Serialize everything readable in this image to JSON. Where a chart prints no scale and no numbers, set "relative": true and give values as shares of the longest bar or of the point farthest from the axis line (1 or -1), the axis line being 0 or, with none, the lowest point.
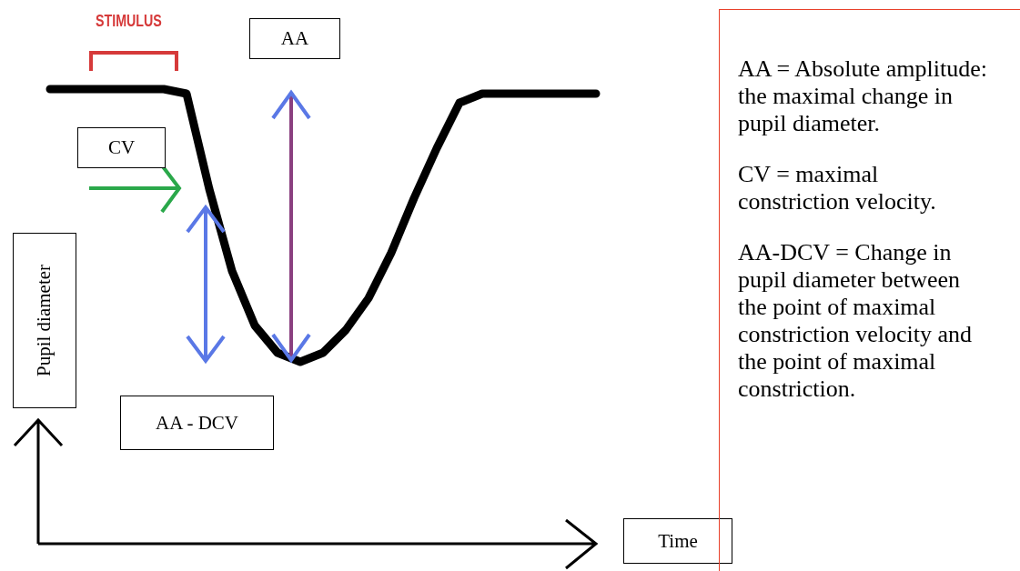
{
  "chart_data": {
    "type": "line",
    "relative": true,
    "xlabel": "Time",
    "ylabel": "Pupil diameter",
    "marker": "none",
    "line_style": "solid",
    "categories": [
      null,
      null,
      null,
      null,
      null,
      null,
      null,
      null,
      null,
      null,
      null,
      null,
      null,
      null,
      null,
      null,
      null,
      null,
      null,
      null,
      null,
      null,
      null,
      null,
      null
    ],
    "series": [
      {
        "color": "#000000",
        "values": [
          1,
          1,
          1,
          1,
          1,
          1,
          0.99,
          0.78,
          0.6,
          0.48,
          0.42,
          0.4,
          0.42,
          0.47,
          0.54,
          0.64,
          0.76,
          0.87,
          0.97,
          0.99,
          0.99,
          0.99,
          0.99,
          0.99,
          0.99
        ]
      }
    ],
    "annotations": [
      "STIMULUS",
      "AA",
      "CV",
      "AA - DCV",
      "AA = Absolute amplitude: the maximal change in pupil diameter.",
      "CV = maximal constriction velocity.",
      "AA-DCV = Change in pupil diameter between the point of maximal constriction velocity and the point of maximal constriction."
    ]
  }
}
